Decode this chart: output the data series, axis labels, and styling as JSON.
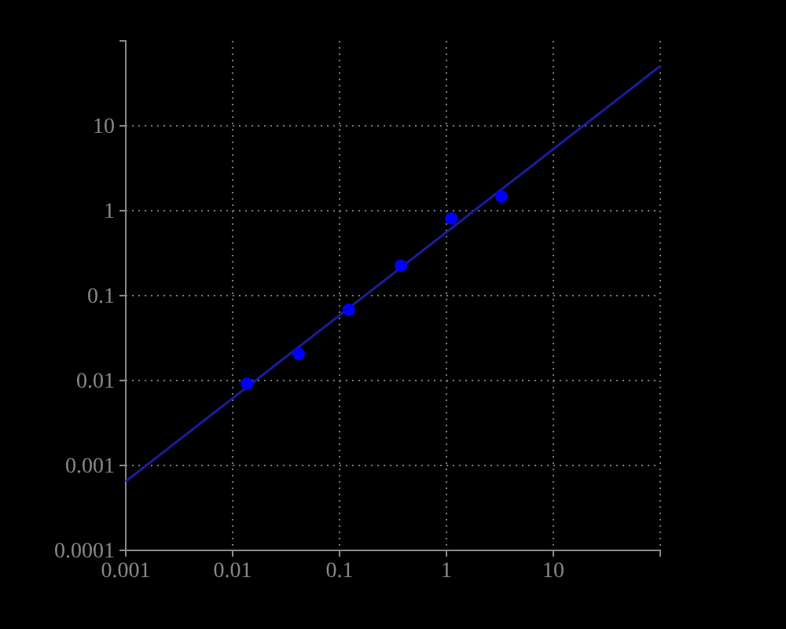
{
  "chart_data": {
    "type": "scatter",
    "log": "xy",
    "grid": true,
    "xlim": [
      0.001,
      100
    ],
    "ylim": [
      0.0001,
      100
    ],
    "xticks": [
      0.001,
      0.01,
      0.1,
      1,
      10
    ],
    "yticks": [
      0.0001,
      0.001,
      0.01,
      0.1,
      1,
      10
    ],
    "series": [
      {
        "type": "scatter",
        "marker": "circle",
        "color": "#0000ff",
        "x": [
          0.0136,
          0.0415,
          0.122,
          0.375,
          1.11,
          3.27
        ],
        "values": [
          0.0092,
          0.0206,
          0.068,
          0.225,
          0.81,
          1.47
        ]
      },
      {
        "type": "line",
        "color": "#1c1c9c",
        "marker": "none",
        "x": [
          0.001,
          100
        ],
        "values": [
          0.00065,
          50.6
        ]
      }
    ]
  }
}
